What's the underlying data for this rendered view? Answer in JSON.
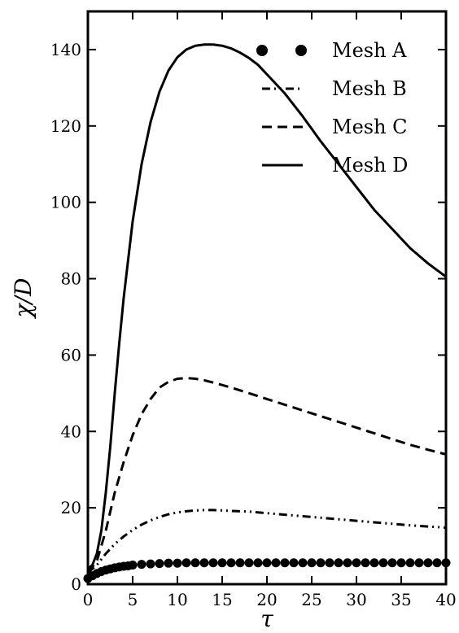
{
  "chart_data": {
    "type": "line",
    "title": "",
    "xlabel": "τ",
    "ylabel": "χ/D",
    "xlim": [
      0,
      40
    ],
    "ylim": [
      0,
      150
    ],
    "xticks": [
      0,
      5,
      10,
      15,
      20,
      25,
      30,
      35,
      40
    ],
    "yticks": [
      0,
      20,
      40,
      60,
      80,
      100,
      120,
      140
    ],
    "grid": false,
    "legend_position": "top-right",
    "series": [
      {
        "name": "Mesh A",
        "style": "markers",
        "color": "#000000",
        "x": [
          0,
          0.5,
          1,
          1.5,
          2,
          2.5,
          3,
          3.5,
          4,
          4.5,
          5,
          6,
          7,
          8,
          9,
          10,
          11,
          12,
          13,
          14,
          15,
          16,
          17,
          18,
          19,
          20,
          21,
          22,
          23,
          24,
          25,
          26,
          27,
          28,
          29,
          30,
          31,
          32,
          33,
          34,
          35,
          36,
          37,
          38,
          39,
          40
        ],
        "y": [
          1.5,
          2.2,
          2.8,
          3.3,
          3.7,
          4.0,
          4.3,
          4.5,
          4.7,
          4.8,
          5.0,
          5.2,
          5.3,
          5.4,
          5.5,
          5.5,
          5.6,
          5.6,
          5.6,
          5.6,
          5.6,
          5.6,
          5.6,
          5.6,
          5.6,
          5.6,
          5.6,
          5.6,
          5.6,
          5.6,
          5.6,
          5.6,
          5.6,
          5.6,
          5.6,
          5.6,
          5.6,
          5.6,
          5.6,
          5.6,
          5.6,
          5.6,
          5.6,
          5.6,
          5.6,
          5.6
        ]
      },
      {
        "name": "Mesh B",
        "style": "dash-dot-dot",
        "color": "#000000",
        "x": [
          0,
          1,
          2,
          3,
          4,
          5,
          6,
          7,
          8,
          9,
          10,
          11,
          12,
          13,
          14,
          15,
          16,
          17,
          18,
          20,
          22,
          24,
          26,
          28,
          30,
          32,
          34,
          36,
          38,
          40
        ],
        "y": [
          3,
          5,
          8,
          10.5,
          12.5,
          14.2,
          15.6,
          16.7,
          17.6,
          18.3,
          18.8,
          19.1,
          19.3,
          19.4,
          19.4,
          19.3,
          19.2,
          19.1,
          19.0,
          18.6,
          18.2,
          17.8,
          17.4,
          17.0,
          16.6,
          16.2,
          15.8,
          15.4,
          15.1,
          14.8
        ]
      },
      {
        "name": "Mesh C",
        "style": "dashed",
        "color": "#000000",
        "x": [
          0,
          1,
          2,
          3,
          4,
          5,
          6,
          7,
          8,
          9,
          10,
          11,
          12,
          13,
          14,
          16,
          18,
          20,
          22,
          24,
          26,
          28,
          30,
          32,
          34,
          36,
          38,
          40
        ],
        "y": [
          3,
          6,
          14,
          24,
          32,
          39,
          44.5,
          48.5,
          51.5,
          53,
          53.8,
          54,
          53.8,
          53.4,
          52.8,
          51.5,
          50,
          48.5,
          47,
          45.5,
          44,
          42.5,
          41,
          39.5,
          38,
          36.5,
          35.2,
          34
        ]
      },
      {
        "name": "Mesh D",
        "style": "solid",
        "color": "#000000",
        "x": [
          0,
          0.5,
          1,
          1.5,
          2,
          2.5,
          3,
          3.5,
          4,
          5,
          6,
          7,
          8,
          9,
          10,
          11,
          12,
          13,
          14,
          15,
          16,
          17,
          18,
          19,
          20,
          22,
          24,
          26,
          28,
          30,
          32,
          34,
          36,
          38,
          40
        ],
        "y": [
          4,
          5,
          8,
          14,
          24,
          36,
          50,
          63,
          75,
          95,
          110,
          121,
          129,
          134.5,
          138,
          140,
          141,
          141.3,
          141.3,
          141,
          140.3,
          139.2,
          137.8,
          136,
          133.5,
          128.5,
          122.5,
          116,
          110,
          104,
          98,
          93,
          88,
          84,
          80.5
        ]
      }
    ]
  }
}
